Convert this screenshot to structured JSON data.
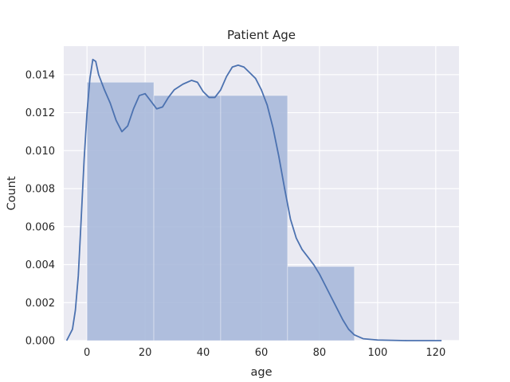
{
  "chart_data": {
    "type": "bar",
    "title": "Patient Age",
    "xlabel": "age",
    "ylabel": "Count",
    "xlim": [
      -8,
      128
    ],
    "ylim": [
      0,
      0.0155
    ],
    "xticks": [
      0,
      20,
      40,
      60,
      80,
      100,
      120
    ],
    "yticks": [
      0.0,
      0.002,
      0.004,
      0.006,
      0.008,
      0.01,
      0.012,
      0.014
    ],
    "ytick_labels": [
      "0.000",
      "0.002",
      "0.004",
      "0.006",
      "0.008",
      "0.010",
      "0.012",
      "0.014"
    ],
    "grid": true,
    "background": "#eaeaf2",
    "bar_color": "#a9b9da",
    "line_color": "#4c72b0",
    "bins": [
      {
        "x0": 0,
        "x1": 23,
        "value": 0.0136
      },
      {
        "x0": 23,
        "x1": 46,
        "value": 0.0129
      },
      {
        "x0": 46,
        "x1": 69,
        "value": 0.0129
      },
      {
        "x0": 69,
        "x1": 92,
        "value": 0.0039
      }
    ],
    "kde": [
      [
        -7,
        0.0
      ],
      [
        -5,
        0.0006
      ],
      [
        -4,
        0.0016
      ],
      [
        -3,
        0.0034
      ],
      [
        -2,
        0.0064
      ],
      [
        -1,
        0.0095
      ],
      [
        0,
        0.012
      ],
      [
        1,
        0.0138
      ],
      [
        2,
        0.0148
      ],
      [
        3,
        0.0147
      ],
      [
        4,
        0.014
      ],
      [
        6,
        0.0132
      ],
      [
        8,
        0.0125
      ],
      [
        10,
        0.0116
      ],
      [
        12,
        0.011
      ],
      [
        14,
        0.0113
      ],
      [
        16,
        0.0122
      ],
      [
        18,
        0.0129
      ],
      [
        20,
        0.013
      ],
      [
        22,
        0.0126
      ],
      [
        24,
        0.0122
      ],
      [
        26,
        0.0123
      ],
      [
        28,
        0.0128
      ],
      [
        30,
        0.0132
      ],
      [
        33,
        0.0135
      ],
      [
        36,
        0.0137
      ],
      [
        38,
        0.0136
      ],
      [
        40,
        0.0131
      ],
      [
        42,
        0.0128
      ],
      [
        44,
        0.0128
      ],
      [
        46,
        0.0132
      ],
      [
        48,
        0.0139
      ],
      [
        50,
        0.0144
      ],
      [
        52,
        0.0145
      ],
      [
        54,
        0.0144
      ],
      [
        56,
        0.0141
      ],
      [
        58,
        0.0138
      ],
      [
        60,
        0.0132
      ],
      [
        62,
        0.0124
      ],
      [
        64,
        0.0112
      ],
      [
        66,
        0.0097
      ],
      [
        68,
        0.008
      ],
      [
        70,
        0.0064
      ],
      [
        72,
        0.0054
      ],
      [
        74,
        0.0048
      ],
      [
        76,
        0.0044
      ],
      [
        78,
        0.004
      ],
      [
        80,
        0.0035
      ],
      [
        82,
        0.0029
      ],
      [
        84,
        0.0023
      ],
      [
        86,
        0.0017
      ],
      [
        88,
        0.0011
      ],
      [
        90,
        0.0006
      ],
      [
        92,
        0.0003
      ],
      [
        95,
        0.0001
      ],
      [
        100,
        3e-05
      ],
      [
        110,
        0.0
      ],
      [
        122,
        0.0
      ]
    ]
  }
}
